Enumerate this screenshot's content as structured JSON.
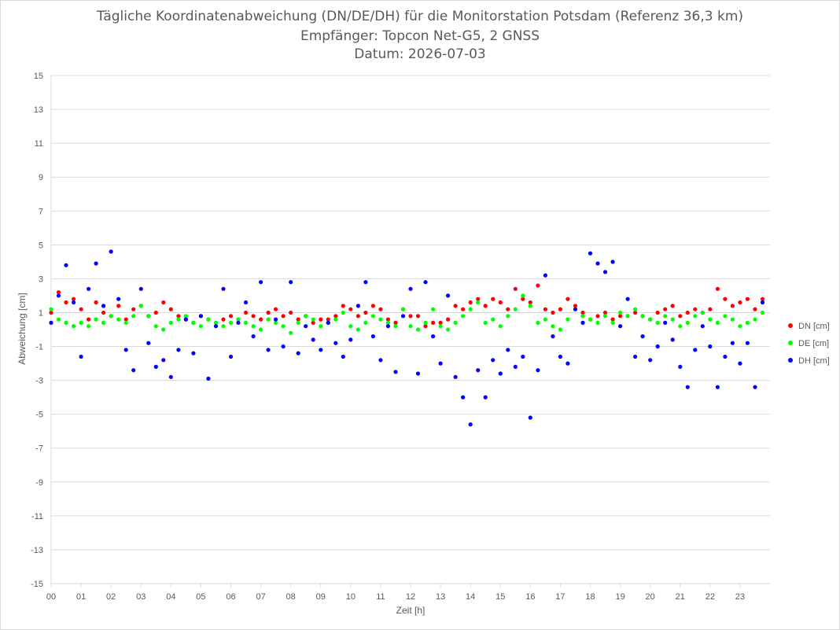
{
  "chart_data": {
    "type": "scatter",
    "title": "Tägliche Koordinatenabweichung (DN/DE/DH) für die Monitorstation Potsdam (Referenz 36,3 km)",
    "subtitle": "Empfänger: Topcon Net-G5, 2 GNSS",
    "date": "Datum: 2026-07-03",
    "xlabel": "Zeit [h]",
    "ylabel": "Abweichung [cm]",
    "xlim": [
      0,
      24
    ],
    "ylim": [
      -15,
      15
    ],
    "x_ticks": [
      "00",
      "01",
      "02",
      "03",
      "04",
      "05",
      "06",
      "07",
      "08",
      "09",
      "10",
      "11",
      "12",
      "13",
      "14",
      "15",
      "16",
      "17",
      "18",
      "19",
      "20",
      "21",
      "22",
      "23"
    ],
    "y_ticks": [
      "15",
      "13",
      "11",
      "9",
      "7",
      "5",
      "3",
      "1",
      "-1",
      "-3",
      "-5",
      "-7",
      "-9",
      "-11",
      "-13",
      "-15"
    ],
    "grid": "horizontal",
    "legend_position": "right",
    "series": [
      {
        "name": "DN [cm]",
        "color": "#ff0000",
        "x": [
          0.0,
          0.25,
          0.5,
          0.75,
          1.0,
          1.25,
          1.5,
          1.75,
          2.0,
          2.25,
          2.5,
          2.75,
          3.0,
          3.25,
          3.5,
          3.75,
          4.0,
          4.25,
          4.5,
          4.75,
          5.0,
          5.25,
          5.5,
          5.75,
          6.0,
          6.25,
          6.5,
          6.75,
          7.0,
          7.25,
          7.5,
          7.75,
          8.0,
          8.25,
          8.5,
          8.75,
          9.0,
          9.25,
          9.5,
          9.75,
          10.0,
          10.25,
          10.5,
          10.75,
          11.0,
          11.25,
          11.5,
          11.75,
          12.0,
          12.25,
          12.5,
          12.75,
          13.0,
          13.25,
          13.5,
          13.75,
          14.0,
          14.25,
          14.5,
          14.75,
          15.0,
          15.25,
          15.5,
          15.75,
          16.0,
          16.25,
          16.5,
          16.75,
          17.0,
          17.25,
          17.5,
          17.75,
          18.0,
          18.25,
          18.5,
          18.75,
          19.0,
          19.25,
          19.5,
          19.75,
          20.0,
          20.25,
          20.5,
          20.75,
          21.0,
          21.25,
          21.5,
          21.75,
          22.0,
          22.25,
          22.5,
          22.75,
          23.0,
          23.25,
          23.5,
          23.75
        ],
        "y": [
          1.0,
          2.2,
          1.6,
          1.8,
          1.2,
          0.6,
          1.6,
          1.0,
          0.8,
          1.4,
          0.6,
          1.2,
          1.4,
          0.8,
          1.0,
          1.6,
          1.2,
          0.8,
          0.6,
          0.4,
          0.8,
          0.6,
          0.4,
          0.6,
          0.8,
          0.6,
          1.0,
          0.8,
          0.6,
          1.0,
          1.2,
          0.8,
          1.0,
          0.6,
          0.8,
          0.4,
          0.6,
          0.6,
          0.8,
          1.4,
          1.2,
          0.8,
          1.0,
          1.4,
          1.2,
          0.6,
          0.4,
          1.2,
          0.8,
          0.8,
          0.2,
          0.4,
          0.4,
          0.6,
          1.4,
          1.2,
          1.6,
          1.8,
          1.4,
          1.8,
          1.6,
          1.2,
          2.4,
          1.8,
          1.6,
          2.6,
          1.2,
          1.0,
          1.2,
          1.8,
          1.4,
          1.0,
          0.6,
          0.8,
          1.0,
          0.6,
          0.8,
          0.8,
          1.0,
          0.8,
          0.6,
          1.0,
          1.2,
          1.4,
          0.8,
          1.0,
          1.2,
          1.0,
          1.2,
          2.4,
          1.8,
          1.4,
          1.6,
          1.8,
          1.2,
          1.8
        ]
      },
      {
        "name": "DE [cm]",
        "color": "#00ff00",
        "x": [
          0.0,
          0.25,
          0.5,
          0.75,
          1.0,
          1.25,
          1.5,
          1.75,
          2.0,
          2.25,
          2.5,
          2.75,
          3.0,
          3.25,
          3.5,
          3.75,
          4.0,
          4.25,
          4.5,
          4.75,
          5.0,
          5.25,
          5.5,
          5.75,
          6.0,
          6.25,
          6.5,
          6.75,
          7.0,
          7.25,
          7.5,
          7.75,
          8.0,
          8.25,
          8.5,
          8.75,
          9.0,
          9.25,
          9.5,
          9.75,
          10.0,
          10.25,
          10.5,
          10.75,
          11.0,
          11.25,
          11.5,
          11.75,
          12.0,
          12.25,
          12.5,
          12.75,
          13.0,
          13.25,
          13.5,
          13.75,
          14.0,
          14.25,
          14.5,
          14.75,
          15.0,
          15.25,
          15.5,
          15.75,
          16.0,
          16.25,
          16.5,
          16.75,
          17.0,
          17.25,
          17.5,
          17.75,
          18.0,
          18.25,
          18.5,
          18.75,
          19.0,
          19.25,
          19.5,
          19.75,
          20.0,
          20.25,
          20.5,
          20.75,
          21.0,
          21.25,
          21.5,
          21.75,
          22.0,
          22.25,
          22.5,
          22.75,
          23.0,
          23.25,
          23.5,
          23.75
        ],
        "y": [
          1.2,
          0.6,
          0.4,
          0.2,
          0.4,
          0.2,
          0.6,
          0.4,
          0.8,
          0.6,
          0.4,
          0.8,
          1.4,
          0.8,
          0.2,
          0.0,
          0.4,
          0.6,
          0.8,
          0.4,
          0.2,
          0.6,
          0.4,
          0.2,
          0.4,
          0.6,
          0.4,
          0.2,
          0.0,
          0.6,
          0.4,
          0.2,
          -0.2,
          0.4,
          0.8,
          0.6,
          0.2,
          0.4,
          0.6,
          1.0,
          0.2,
          0.0,
          0.4,
          0.8,
          0.6,
          0.4,
          0.2,
          1.2,
          0.2,
          0.0,
          0.4,
          1.2,
          0.2,
          0.0,
          0.4,
          0.8,
          1.2,
          1.6,
          0.4,
          0.6,
          0.2,
          0.8,
          1.2,
          2.0,
          1.4,
          0.4,
          0.6,
          0.2,
          0.0,
          0.6,
          1.2,
          0.8,
          0.6,
          0.4,
          0.8,
          0.4,
          1.0,
          0.8,
          1.2,
          0.8,
          0.6,
          0.4,
          0.8,
          0.6,
          0.2,
          0.4,
          0.8,
          1.0,
          0.6,
          0.4,
          0.8,
          0.6,
          0.2,
          0.4,
          0.6,
          1.0
        ]
      },
      {
        "name": "DH [cm]",
        "color": "#0000ff",
        "x": [
          0.0,
          0.25,
          0.5,
          0.75,
          1.0,
          1.25,
          1.5,
          1.75,
          2.0,
          2.25,
          2.5,
          2.75,
          3.0,
          3.25,
          3.5,
          3.75,
          4.0,
          4.25,
          4.5,
          4.75,
          5.0,
          5.25,
          5.5,
          5.75,
          6.0,
          6.25,
          6.5,
          6.75,
          7.0,
          7.25,
          7.5,
          7.75,
          8.0,
          8.25,
          8.5,
          8.75,
          9.0,
          9.25,
          9.5,
          9.75,
          10.0,
          10.25,
          10.5,
          10.75,
          11.0,
          11.25,
          11.5,
          11.75,
          12.0,
          12.25,
          12.5,
          12.75,
          13.0,
          13.25,
          13.5,
          13.75,
          14.0,
          14.25,
          14.5,
          14.75,
          15.0,
          15.25,
          15.5,
          15.75,
          16.0,
          16.25,
          16.5,
          16.75,
          17.0,
          17.25,
          17.5,
          17.75,
          18.0,
          18.25,
          18.5,
          18.75,
          19.0,
          19.25,
          19.5,
          19.75,
          20.0,
          20.25,
          20.5,
          20.75,
          21.0,
          21.25,
          21.5,
          21.75,
          22.0,
          22.25,
          22.5,
          22.75,
          23.0,
          23.25,
          23.5,
          23.75
        ],
        "y": [
          0.4,
          2.0,
          3.8,
          1.6,
          -1.6,
          2.4,
          3.9,
          1.4,
          4.6,
          1.8,
          -1.2,
          -2.4,
          2.4,
          -0.8,
          -2.2,
          -1.8,
          -2.8,
          -1.2,
          0.6,
          -1.4,
          0.8,
          -2.9,
          0.2,
          2.4,
          -1.6,
          0.4,
          1.6,
          -0.4,
          2.8,
          -1.2,
          0.6,
          -1.0,
          2.8,
          -1.4,
          0.2,
          -0.6,
          -1.2,
          0.4,
          -0.8,
          -1.6,
          -0.6,
          1.4,
          2.8,
          -0.4,
          -1.8,
          0.2,
          -2.5,
          0.8,
          2.4,
          -2.6,
          2.8,
          -0.4,
          -2.0,
          2.0,
          -2.8,
          -4.0,
          -5.6,
          -2.4,
          -4.0,
          -1.8,
          -2.6,
          -1.2,
          -2.2,
          -1.6,
          -5.2,
          -2.4,
          3.2,
          -0.4,
          -1.6,
          -2.0,
          1.2,
          0.4,
          4.5,
          3.9,
          3.4,
          4.0,
          0.2,
          1.8,
          -1.6,
          -0.4,
          -1.8,
          -1.0,
          0.4,
          -0.6,
          -2.2,
          -3.4,
          -1.2,
          0.2,
          -1.0,
          -3.4,
          -1.6,
          -0.8,
          -2.0,
          -0.8,
          -3.4,
          1.6
        ]
      }
    ]
  }
}
